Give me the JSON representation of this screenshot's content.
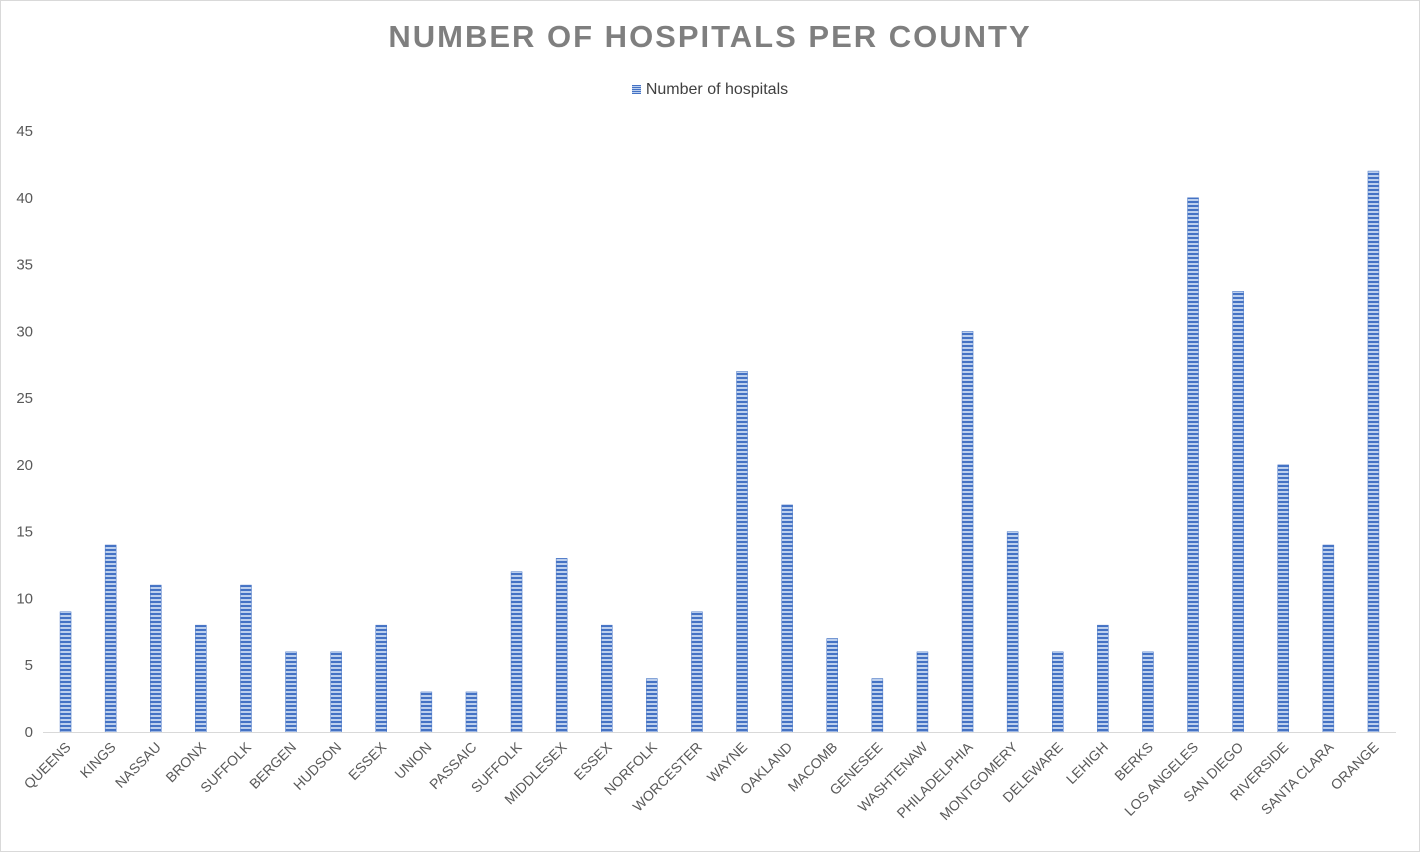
{
  "chart_data": {
    "type": "bar",
    "title": "NUMBER OF HOSPITALS PER COUNTY",
    "legend": {
      "label": "Number of hospitals",
      "placement": "top"
    },
    "categories": [
      "QUEENS",
      "KINGS",
      "NASSAU",
      "BRONX",
      "SUFFOLK",
      "BERGEN",
      "HUDSON",
      "ESSEX",
      "UNION",
      "PASSAIC",
      "SUFFOLK",
      "MIDDLESEX",
      "ESSEX",
      "NORFOLK",
      "WORCESTER",
      "WAYNE",
      "OAKLAND",
      "MACOMB",
      "GENESEE",
      "WASHTENAW",
      "PHILADELPHIA",
      "MONTGOMERY",
      "DELEWARE",
      "LEHIGH",
      "BERKS",
      "LOS ANGELES",
      "SAN DIEGO",
      "RIVERSIDE",
      "SANTA CLARA",
      "ORANGE"
    ],
    "series": [
      {
        "name": "Number of hospitals",
        "values": [
          9,
          14,
          11,
          8,
          11,
          6,
          6,
          8,
          3,
          3,
          12,
          13,
          8,
          4,
          9,
          27,
          17,
          7,
          4,
          6,
          30,
          15,
          6,
          8,
          6,
          40,
          33,
          20,
          14,
          42
        ]
      }
    ],
    "ylim": [
      0,
      45
    ],
    "yticks": [
      0,
      5,
      10,
      15,
      20,
      25,
      30,
      35,
      40,
      45
    ],
    "grid": false,
    "bar_color": "#4472c4"
  }
}
